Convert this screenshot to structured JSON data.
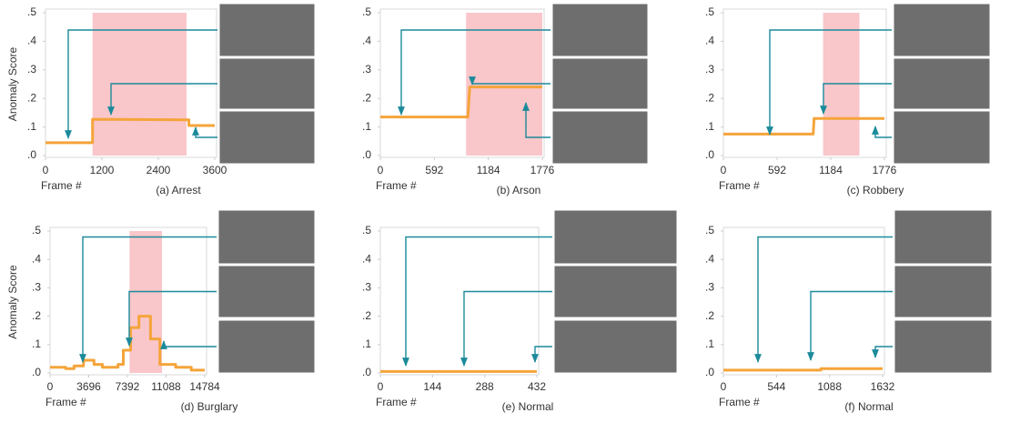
{
  "chart_data": [
    {
      "type": "line",
      "title": "(a) Arrest",
      "xlabel": "Frame #",
      "ylabel": "Anomaly Score",
      "xlim": [
        0,
        3600
      ],
      "xticks": [
        0,
        1200,
        2400,
        3600
      ],
      "ylim": [
        0,
        0.5
      ],
      "yticks": [
        {
          "value": 0,
          "label": ".0"
        },
        {
          "value": 0.1,
          "label": ".1"
        },
        {
          "value": 0.2,
          "label": ".2"
        },
        {
          "value": 0.3,
          "label": ".3"
        },
        {
          "value": 0.4,
          "label": ".4"
        },
        {
          "value": 0.5,
          "label": ".5"
        }
      ],
      "highlight": [
        1000,
        3000
      ],
      "highlight_color": "#f9c6ca",
      "color": "#f5a43a",
      "x": [
        0,
        1000,
        1000,
        3050,
        3050,
        3600
      ],
      "values": [
        0.045,
        0.045,
        0.127,
        0.125,
        0.105,
        0.105
      ]
    },
    {
      "type": "line",
      "title": "(b) Arson",
      "xlabel": "Frame #",
      "xlim": [
        0,
        1776
      ],
      "xticks": [
        0,
        592,
        1184,
        1776
      ],
      "ylim": [
        0,
        0.5
      ],
      "yticks": [
        {
          "value": 0,
          "label": ".0"
        },
        {
          "value": 0.1,
          "label": ".1"
        },
        {
          "value": 0.2,
          "label": ".2"
        },
        {
          "value": 0.3,
          "label": ".3"
        },
        {
          "value": 0.4,
          "label": ".4"
        },
        {
          "value": 0.5,
          "label": ".5"
        }
      ],
      "highlight": [
        940,
        1776
      ],
      "highlight_color": "#f9c6ca",
      "color": "#f5a43a",
      "x": [
        0,
        960,
        980,
        1776
      ],
      "values": [
        0.135,
        0.135,
        0.24,
        0.24
      ]
    },
    {
      "type": "line",
      "title": "(c) Robbery",
      "xlabel": "Frame #",
      "xlim": [
        0,
        1776
      ],
      "xticks": [
        0,
        592,
        1184,
        1776
      ],
      "ylim": [
        0,
        0.5
      ],
      "yticks": [
        {
          "value": 0,
          "label": ".0"
        },
        {
          "value": 0.1,
          "label": ".1"
        },
        {
          "value": 0.2,
          "label": ".2"
        },
        {
          "value": 0.3,
          "label": ".3"
        },
        {
          "value": 0.4,
          "label": ".4"
        },
        {
          "value": 0.5,
          "label": ".5"
        }
      ],
      "highlight": [
        1100,
        1500
      ],
      "highlight_color": "#f9c6ca",
      "color": "#f5a43a",
      "x": [
        0,
        990,
        1000,
        1776
      ],
      "values": [
        0.075,
        0.075,
        0.13,
        0.13
      ]
    },
    {
      "type": "line",
      "title": "(d) Burglary",
      "xlabel": "Frame #",
      "ylabel": "Anomaly Score",
      "xlim": [
        0,
        14784
      ],
      "xticks": [
        0,
        3696,
        7392,
        11088,
        14784
      ],
      "ylim": [
        0,
        0.5
      ],
      "yticks": [
        {
          "value": 0,
          "label": ".0"
        },
        {
          "value": 0.1,
          "label": ".1"
        },
        {
          "value": 0.2,
          "label": ".2"
        },
        {
          "value": 0.3,
          "label": ".3"
        },
        {
          "value": 0.4,
          "label": ".4"
        },
        {
          "value": 0.5,
          "label": ".5"
        }
      ],
      "highlight": [
        7600,
        10700
      ],
      "highlight_color": "#f9c6ca",
      "color": "#f5a43a",
      "x": [
        0,
        1500,
        1500,
        2300,
        2300,
        3200,
        3200,
        4200,
        4200,
        5000,
        5000,
        6500,
        6500,
        7000,
        7000,
        7700,
        7700,
        8500,
        8500,
        9600,
        9600,
        10500,
        10500,
        12000,
        12000,
        13500,
        13500,
        14784
      ],
      "values": [
        0.02,
        0.02,
        0.015,
        0.015,
        0.025,
        0.025,
        0.045,
        0.045,
        0.03,
        0.03,
        0.02,
        0.02,
        0.03,
        0.03,
        0.08,
        0.08,
        0.16,
        0.16,
        0.2,
        0.2,
        0.12,
        0.12,
        0.03,
        0.03,
        0.02,
        0.02,
        0.01,
        0.01
      ]
    },
    {
      "type": "line",
      "title": "(e) Normal",
      "xlabel": "Frame #",
      "xlim": [
        0,
        432
      ],
      "xticks": [
        0,
        144,
        288,
        432
      ],
      "ylim": [
        0,
        0.5
      ],
      "yticks": [
        {
          "value": 0,
          "label": ".0"
        },
        {
          "value": 0.1,
          "label": ".1"
        },
        {
          "value": 0.2,
          "label": ".2"
        },
        {
          "value": 0.3,
          "label": ".3"
        },
        {
          "value": 0.4,
          "label": ".4"
        },
        {
          "value": 0.5,
          "label": ".5"
        }
      ],
      "color": "#f5a43a",
      "x": [
        0,
        432
      ],
      "values": [
        0.005,
        0.005
      ]
    },
    {
      "type": "line",
      "title": "(f) Normal",
      "xlabel": "Frame #",
      "xlim": [
        0,
        1632
      ],
      "xticks": [
        0,
        544,
        1088,
        1632
      ],
      "ylim": [
        0,
        0.5
      ],
      "yticks": [
        {
          "value": 0,
          "label": ".0"
        },
        {
          "value": 0.1,
          "label": ".1"
        },
        {
          "value": 0.2,
          "label": ".2"
        },
        {
          "value": 0.3,
          "label": ".3"
        },
        {
          "value": 0.4,
          "label": ".4"
        },
        {
          "value": 0.5,
          "label": ".5"
        }
      ],
      "color": "#f5a43a",
      "x": [
        0,
        1000,
        1000,
        1632
      ],
      "values": [
        0.01,
        0.01,
        0.015,
        0.015
      ]
    }
  ]
}
